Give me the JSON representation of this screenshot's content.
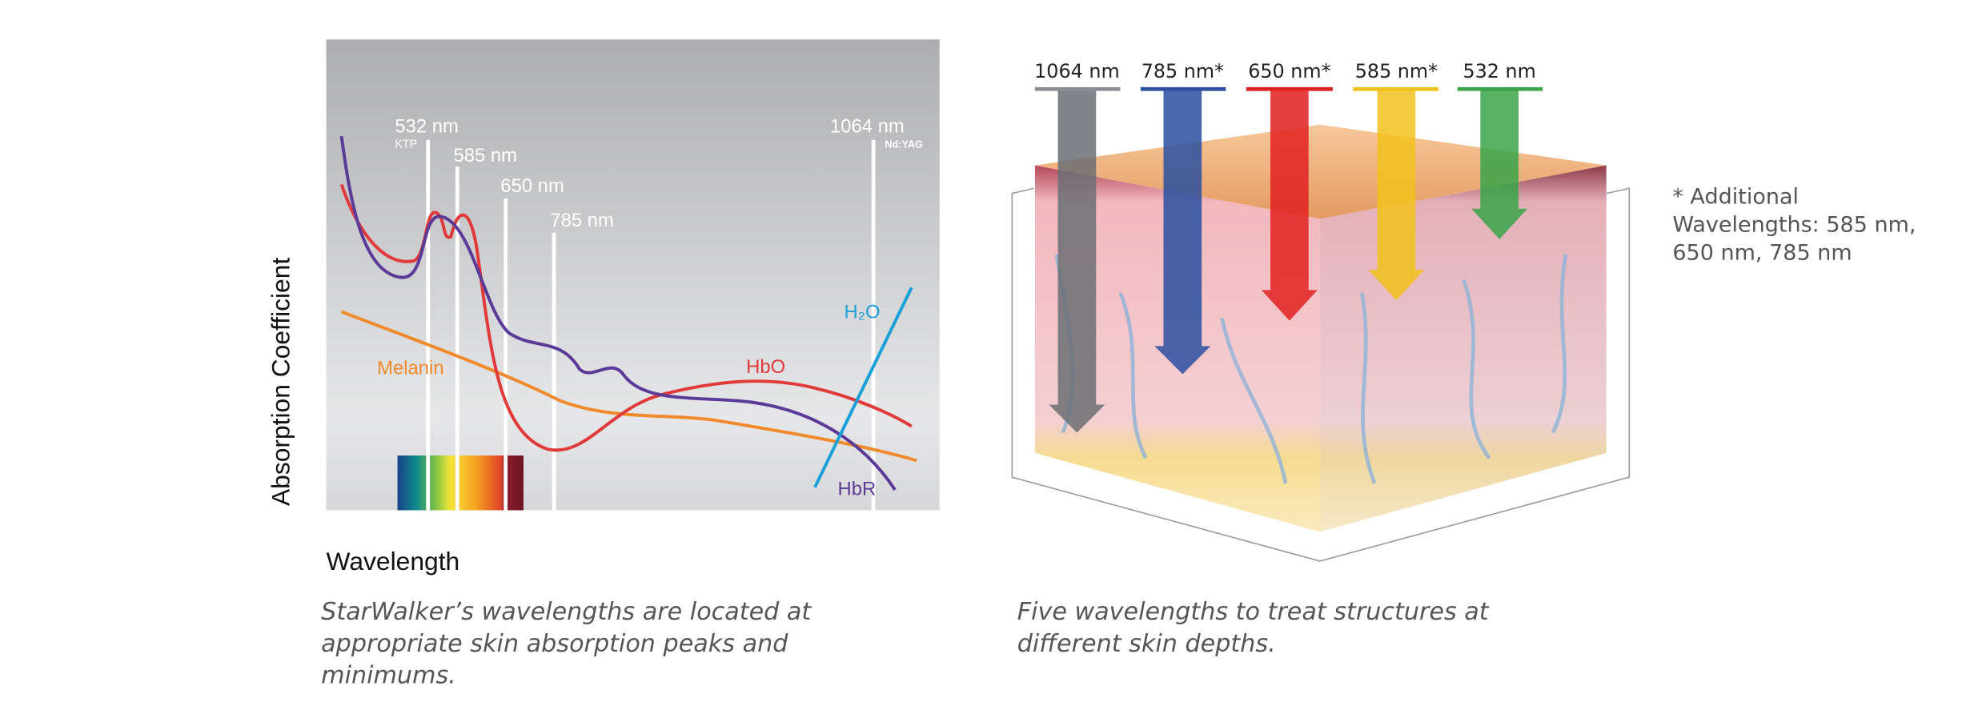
{
  "chart": {
    "y_axis_label": "Absorption Coefficient",
    "x_axis_label": "Wavelength",
    "wavelength_markers": [
      {
        "label": "532 nm",
        "laser": "KTP"
      },
      {
        "label": "585 nm"
      },
      {
        "label": "650 nm"
      },
      {
        "label": "785 nm"
      },
      {
        "label": "1064 nm",
        "laser": "Nd:YAG"
      }
    ],
    "curve_labels": {
      "melanin": "Melanin",
      "hbo": "HbO",
      "hbr": "HbR",
      "h2o": "H₂O"
    },
    "caption": [
      "StarWalker’s wavelengths are located at",
      "appropriate skin absorption peaks and",
      "minimums."
    ]
  },
  "diagram": {
    "arrows": [
      "1064 nm",
      "785 nm*",
      "650 nm*",
      "585 nm*",
      "532 nm"
    ],
    "note": [
      "* Additional",
      "Wavelengths: 585 nm,",
      "650 nm, 785 nm"
    ],
    "caption": [
      "Five wavelengths to treat structures at",
      "different skin depths."
    ]
  }
}
